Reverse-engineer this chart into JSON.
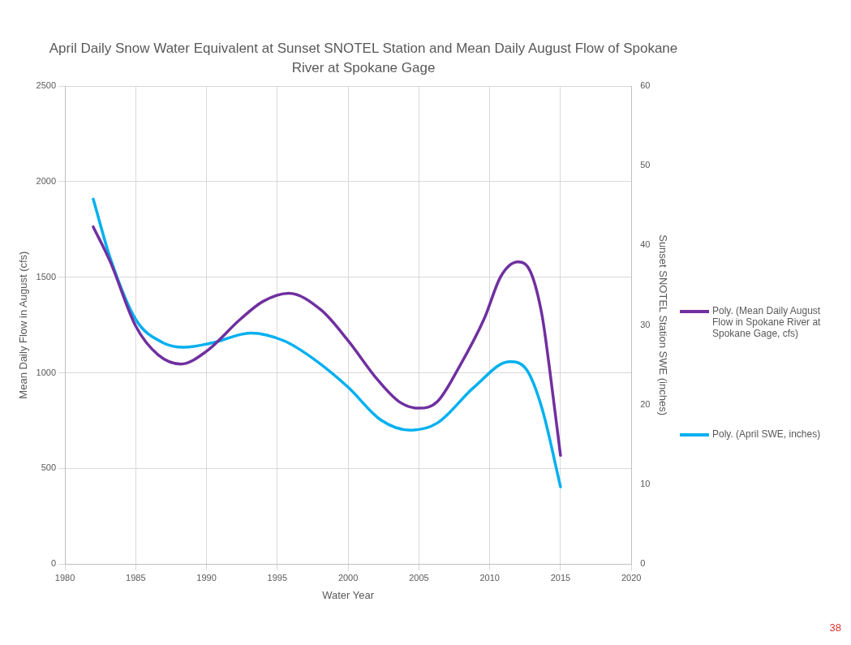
{
  "chart_data": {
    "type": "line",
    "title": "April Daily Snow Water Equivalent at Sunset SNOTEL Station and Mean Daily August Flow of Spokane River at Spokane Gage",
    "xlabel": "Water Year",
    "ylabel": "Mean Daily Flow in August (cfs)",
    "y2label": "Sunset SNOTEL Station SWE (inches)",
    "xlim": [
      1980,
      2020
    ],
    "xticks": [
      1980,
      1985,
      1990,
      1995,
      2000,
      2005,
      2010,
      2015,
      2020
    ],
    "ylim": [
      0,
      2500
    ],
    "yticks": [
      0,
      500,
      1000,
      1500,
      2000,
      2500
    ],
    "y2lim": [
      0,
      60
    ],
    "y2ticks": [
      0,
      10,
      20,
      30,
      40,
      50,
      60
    ],
    "grid": true,
    "legend": "right",
    "marker": "none",
    "line_style": "solid",
    "annotations": [
      "38"
    ],
    "series": [
      {
        "name": "Poly. (Mean Daily August Flow in Spokane River at Spokane Gage, cfs)",
        "color": "#7030a0",
        "axis": "y",
        "x": [
          1982,
          1983.2,
          1985,
          1986.6,
          1988.2,
          1990,
          1992.4,
          1994,
          1995.8,
          1998.1,
          2000,
          2002.1,
          2003.6,
          2005,
          2006.3,
          2007.9,
          2009.6,
          2010.8,
          2012,
          2012.9,
          2013.7,
          2014.2,
          2015
        ],
        "values": [
          1763,
          1581,
          1244,
          1093,
          1046,
          1113,
          1281,
          1374,
          1416,
          1328,
          1168,
          962,
          849,
          815,
          849,
          1038,
          1281,
          1506,
          1580,
          1525,
          1299,
          1038,
          568
        ]
      },
      {
        "name": "Poly. (April SWE, inches)",
        "color": "#00b0f0",
        "axis": "y2",
        "x": [
          1982,
          1983.2,
          1985,
          1986.9,
          1988.4,
          1990.5,
          1993.1,
          1995.5,
          1997.6,
          2000,
          2002.3,
          2004.4,
          2006.3,
          2008.9,
          2011.4,
          2012.6,
          2013.7,
          2015
        ],
        "values": [
          45.8,
          38.4,
          30.7,
          27.8,
          27.2,
          27.8,
          29,
          28,
          25.7,
          22.2,
          18.1,
          16.8,
          17.7,
          22.2,
          25.4,
          24.4,
          19.5,
          9.7
        ]
      }
    ]
  }
}
